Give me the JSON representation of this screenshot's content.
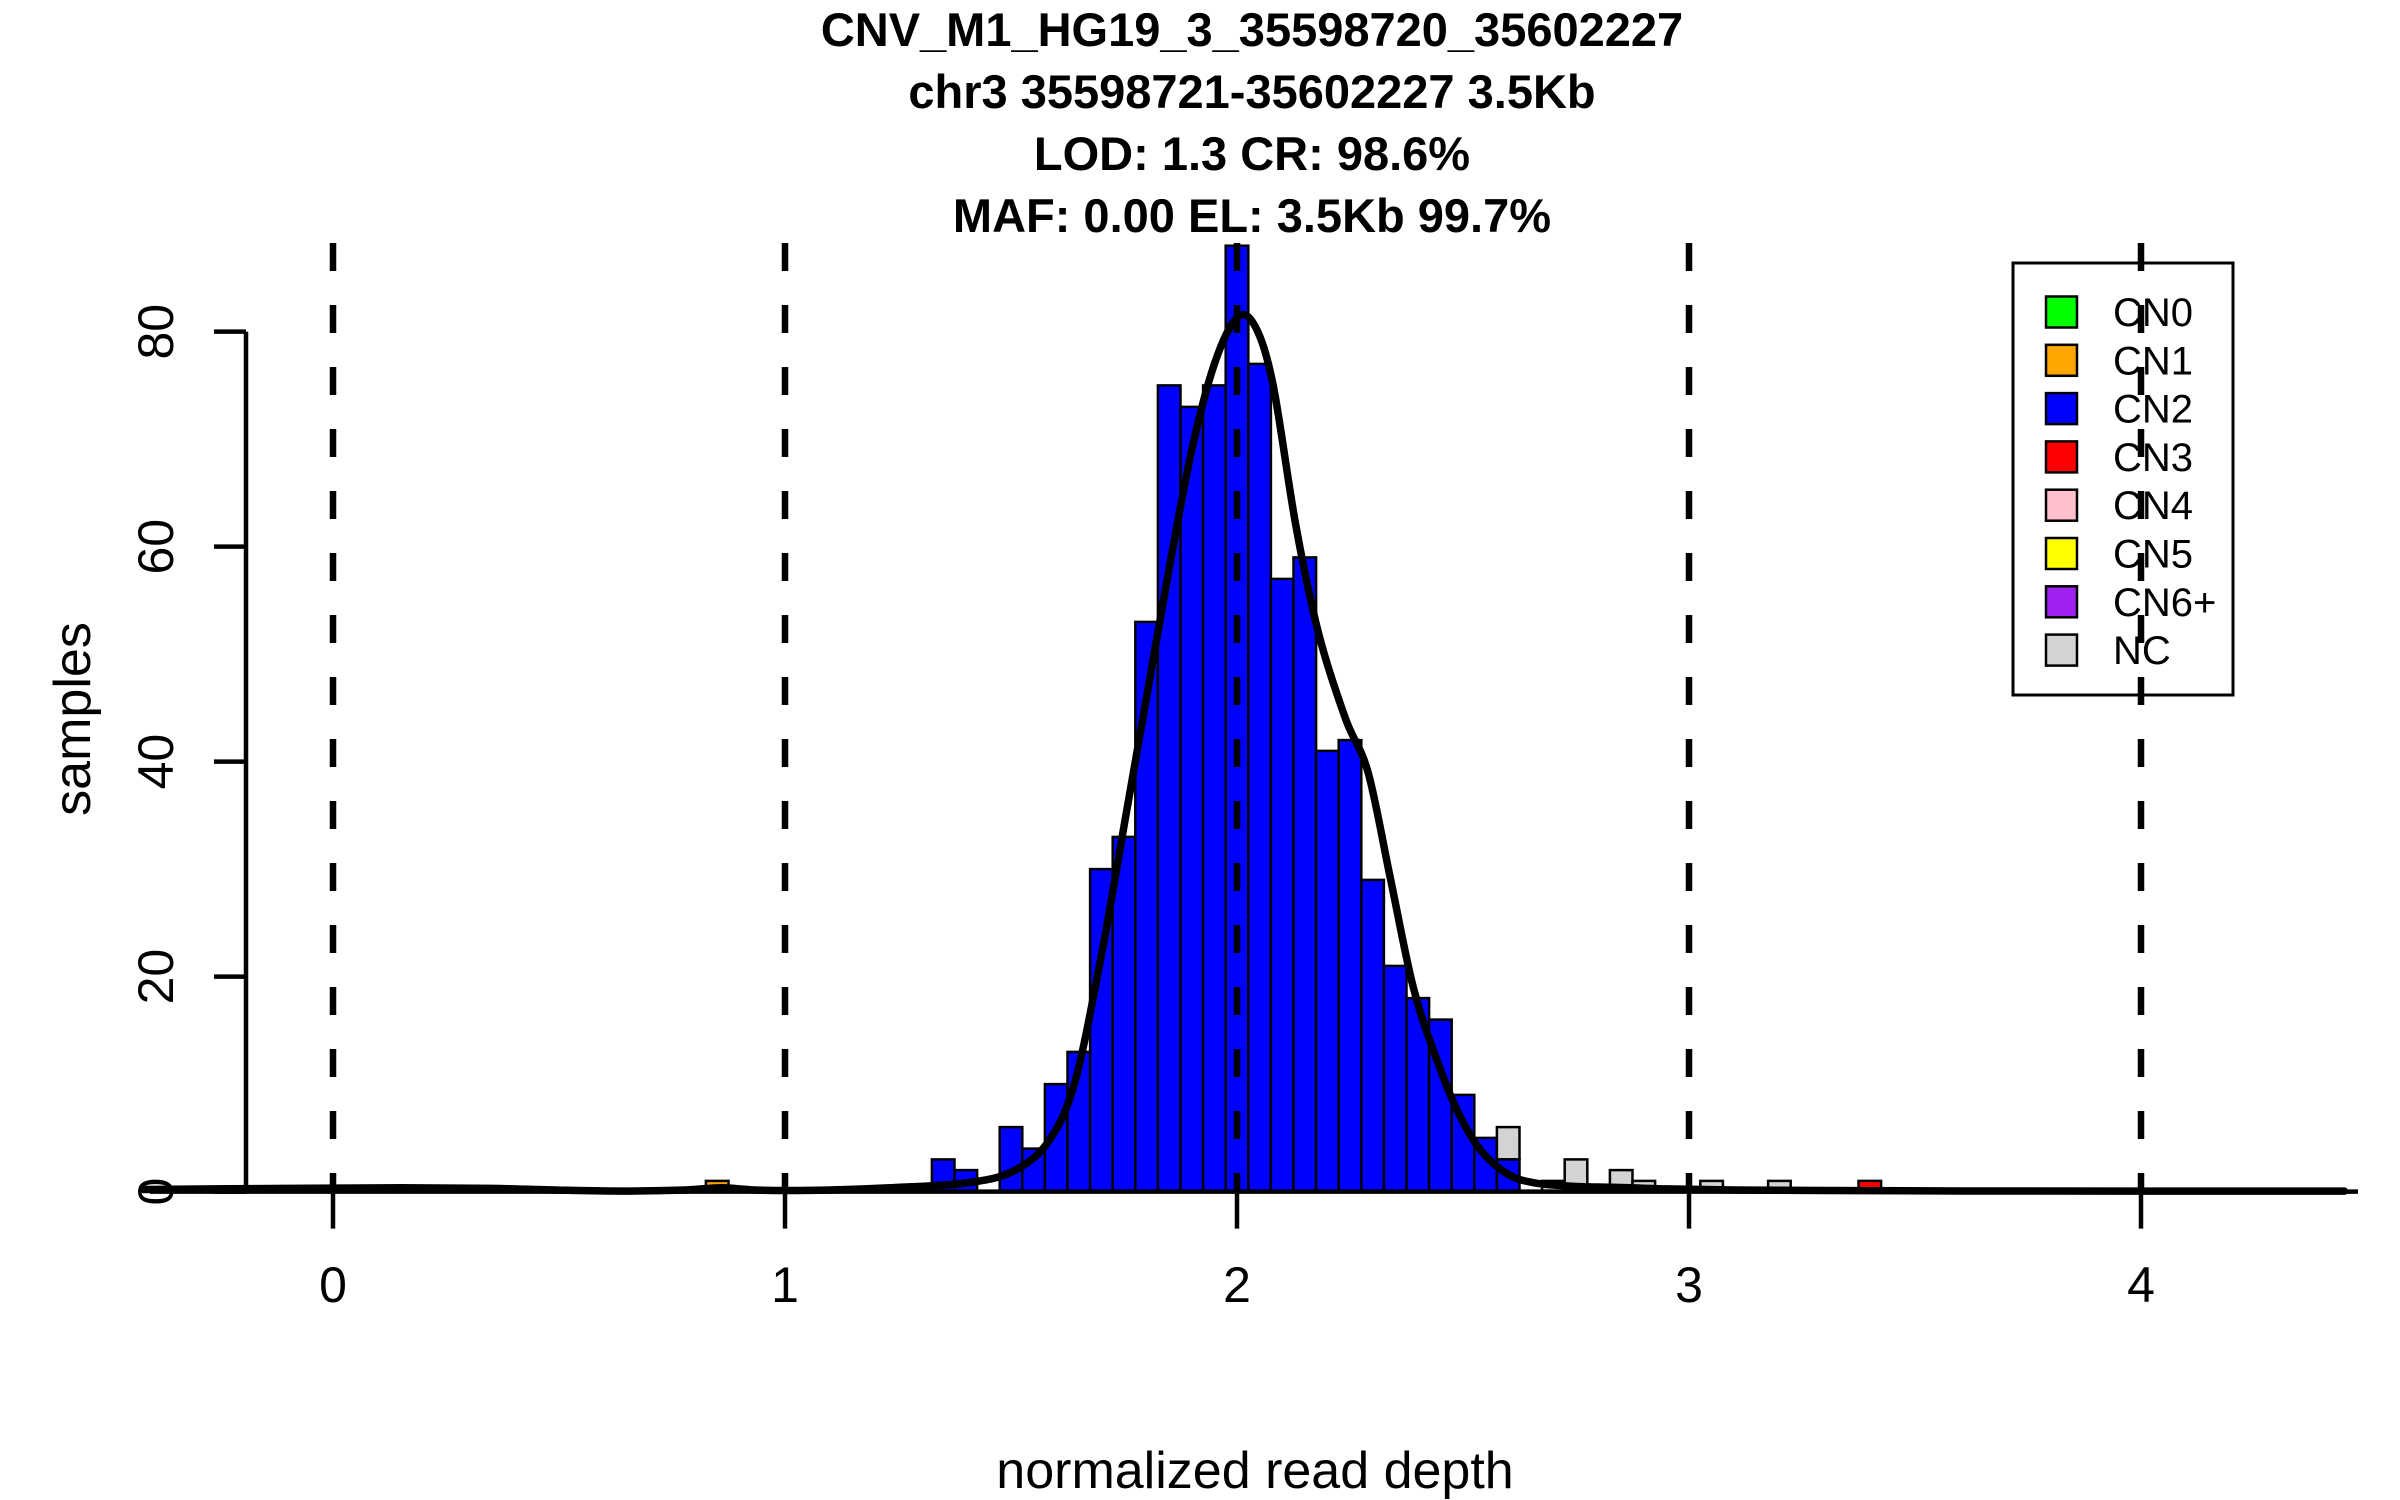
{
  "chart_data": {
    "type": "bar",
    "subtype": "histogram",
    "title_lines": [
      "CNV_M1_HG19_3_35598720_35602227",
      "chr3 35598721-35602227 3.5Kb",
      "LOD: 1.3 CR: 98.6%",
      "MAF: 0.00 EL: 3.5Kb 99.7%"
    ],
    "xlabel": "normalized read depth",
    "ylabel": "samples",
    "x_ticks": [
      0,
      1,
      2,
      3,
      4
    ],
    "y_ticks": [
      0,
      20,
      40,
      60,
      80
    ],
    "xlim": [
      -0.42,
      4.47
    ],
    "ylim": [
      0,
      88
    ],
    "grid": false,
    "bin_width": 0.05,
    "guide_lines_x": [
      0,
      1,
      2,
      3,
      4
    ],
    "colors": {
      "CN0": "#00FF00",
      "CN1": "#FFA500",
      "CN2": "#0000FF",
      "CN3": "#FF0000",
      "CN4": "#FFC0CB",
      "CN5": "#FFFF00",
      "CN6+": "#A020F0",
      "NC": "#D3D3D3",
      "axis": "#000000",
      "curve": "#000000"
    },
    "bars": [
      {
        "x": 0.85,
        "segments": [
          {
            "cn": "CN1",
            "count": 1
          }
        ]
      },
      {
        "x": 1.35,
        "segments": [
          {
            "cn": "CN2",
            "count": 3
          }
        ]
      },
      {
        "x": 1.4,
        "segments": [
          {
            "cn": "CN2",
            "count": 2
          }
        ]
      },
      {
        "x": 1.5,
        "segments": [
          {
            "cn": "CN2",
            "count": 6
          }
        ]
      },
      {
        "x": 1.55,
        "segments": [
          {
            "cn": "CN2",
            "count": 4
          }
        ]
      },
      {
        "x": 1.6,
        "segments": [
          {
            "cn": "CN2",
            "count": 10
          }
        ]
      },
      {
        "x": 1.65,
        "segments": [
          {
            "cn": "CN2",
            "count": 13
          }
        ]
      },
      {
        "x": 1.7,
        "segments": [
          {
            "cn": "CN2",
            "count": 30
          }
        ]
      },
      {
        "x": 1.75,
        "segments": [
          {
            "cn": "CN2",
            "count": 33
          }
        ]
      },
      {
        "x": 1.8,
        "segments": [
          {
            "cn": "CN2",
            "count": 53
          }
        ]
      },
      {
        "x": 1.85,
        "segments": [
          {
            "cn": "CN2",
            "count": 75
          }
        ]
      },
      {
        "x": 1.9,
        "segments": [
          {
            "cn": "CN2",
            "count": 73
          }
        ]
      },
      {
        "x": 1.95,
        "segments": [
          {
            "cn": "CN2",
            "count": 75
          }
        ]
      },
      {
        "x": 2.0,
        "segments": [
          {
            "cn": "CN2",
            "count": 88
          }
        ]
      },
      {
        "x": 2.05,
        "segments": [
          {
            "cn": "CN2",
            "count": 77
          }
        ]
      },
      {
        "x": 2.1,
        "segments": [
          {
            "cn": "CN2",
            "count": 57
          }
        ]
      },
      {
        "x": 2.15,
        "segments": [
          {
            "cn": "CN2",
            "count": 59
          }
        ]
      },
      {
        "x": 2.2,
        "segments": [
          {
            "cn": "CN2",
            "count": 41
          }
        ]
      },
      {
        "x": 2.25,
        "segments": [
          {
            "cn": "CN2",
            "count": 42
          }
        ]
      },
      {
        "x": 2.3,
        "segments": [
          {
            "cn": "CN2",
            "count": 29
          }
        ]
      },
      {
        "x": 2.35,
        "segments": [
          {
            "cn": "CN2",
            "count": 21
          }
        ]
      },
      {
        "x": 2.4,
        "segments": [
          {
            "cn": "CN2",
            "count": 18
          }
        ]
      },
      {
        "x": 2.45,
        "segments": [
          {
            "cn": "CN2",
            "count": 16
          }
        ]
      },
      {
        "x": 2.5,
        "segments": [
          {
            "cn": "CN2",
            "count": 9
          }
        ]
      },
      {
        "x": 2.55,
        "segments": [
          {
            "cn": "CN2",
            "count": 5
          }
        ]
      },
      {
        "x": 2.6,
        "segments": [
          {
            "cn": "CN2",
            "count": 3
          },
          {
            "cn": "NC",
            "count": 3
          }
        ]
      },
      {
        "x": 2.7,
        "segments": [
          {
            "cn": "NC",
            "count": 1
          }
        ]
      },
      {
        "x": 2.75,
        "segments": [
          {
            "cn": "NC",
            "count": 3
          }
        ]
      },
      {
        "x": 2.85,
        "segments": [
          {
            "cn": "NC",
            "count": 2
          }
        ]
      },
      {
        "x": 2.9,
        "segments": [
          {
            "cn": "NC",
            "count": 1
          }
        ]
      },
      {
        "x": 3.05,
        "segments": [
          {
            "cn": "NC",
            "count": 1
          }
        ]
      },
      {
        "x": 3.2,
        "segments": [
          {
            "cn": "NC",
            "count": 1
          }
        ]
      },
      {
        "x": 3.4,
        "segments": [
          {
            "cn": "CN3",
            "count": 1
          }
        ]
      }
    ],
    "density_curve": {
      "points": [
        [
          -0.42,
          0.2
        ],
        [
          -0.1,
          0.3
        ],
        [
          0.15,
          0.35
        ],
        [
          0.35,
          0.3
        ],
        [
          0.52,
          0.12
        ],
        [
          0.65,
          0.05
        ],
        [
          0.78,
          0.15
        ],
        [
          0.86,
          0.35
        ],
        [
          0.95,
          0.12
        ],
        [
          1.1,
          0.15
        ],
        [
          1.28,
          0.45
        ],
        [
          1.4,
          0.8
        ],
        [
          1.5,
          1.8
        ],
        [
          1.58,
          4.5
        ],
        [
          1.64,
          10
        ],
        [
          1.7,
          22
        ],
        [
          1.75,
          34
        ],
        [
          1.8,
          46
        ],
        [
          1.85,
          58
        ],
        [
          1.9,
          69
        ],
        [
          1.95,
          77
        ],
        [
          2.0,
          81.3
        ],
        [
          2.04,
          80.5
        ],
        [
          2.08,
          75
        ],
        [
          2.13,
          62
        ],
        [
          2.18,
          52
        ],
        [
          2.24,
          44
        ],
        [
          2.29,
          39
        ],
        [
          2.34,
          29
        ],
        [
          2.39,
          19
        ],
        [
          2.44,
          12.5
        ],
        [
          2.49,
          7.3
        ],
        [
          2.54,
          3.8
        ],
        [
          2.6,
          1.6
        ],
        [
          2.66,
          0.8
        ],
        [
          2.74,
          0.5
        ],
        [
          2.83,
          0.4
        ],
        [
          2.95,
          0.25
        ],
        [
          3.1,
          0.15
        ],
        [
          3.3,
          0.1
        ],
        [
          3.6,
          0.06
        ],
        [
          4.0,
          0.05
        ],
        [
          4.45,
          0.05
        ]
      ]
    },
    "legend": {
      "position": "top-right",
      "items": [
        {
          "label": "CN0",
          "color": "#00FF00"
        },
        {
          "label": "CN1",
          "color": "#FFA500"
        },
        {
          "label": "CN2",
          "color": "#0000FF"
        },
        {
          "label": "CN3",
          "color": "#FF0000"
        },
        {
          "label": "CN4",
          "color": "#FFC0CB"
        },
        {
          "label": "CN5",
          "color": "#FFFF00"
        },
        {
          "label": "CN6+",
          "color": "#A020F0"
        },
        {
          "label": "NC",
          "color": "#D3D3D3"
        }
      ]
    }
  }
}
